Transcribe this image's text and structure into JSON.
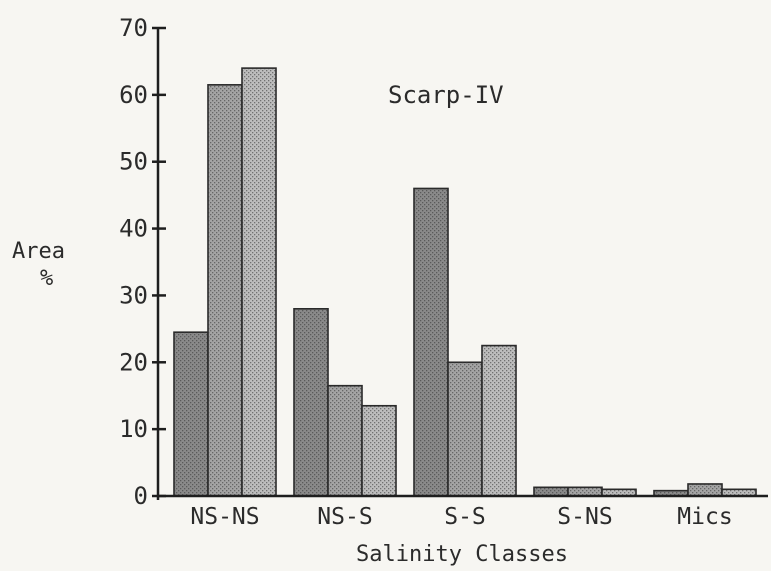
{
  "chart_data": {
    "type": "bar",
    "title": "Scarp-IV",
    "xlabel": "Salinity Classes",
    "ylabel": [
      "Area",
      "%"
    ],
    "ylim": [
      0,
      70
    ],
    "yticks": [
      0,
      10,
      20,
      30,
      40,
      50,
      60,
      70
    ],
    "tick_labels": [
      "0",
      "10",
      "20",
      "30",
      "40",
      "50",
      "60",
      "70"
    ],
    "categories": [
      "NS-NS",
      "NS-S",
      "S-S",
      "S-NS",
      "Mics"
    ],
    "series": [
      {
        "values": [
          24.5,
          28,
          46,
          1.3,
          0.8
        ]
      },
      {
        "values": [
          61.5,
          16.5,
          20,
          1.3,
          1.8
        ]
      },
      {
        "values": [
          64,
          13.5,
          22.5,
          1.0,
          1.0
        ]
      }
    ],
    "grid": false,
    "colors": [
      "#8a8a8a",
      "#a4a4a4",
      "#bdbdbd"
    ]
  }
}
